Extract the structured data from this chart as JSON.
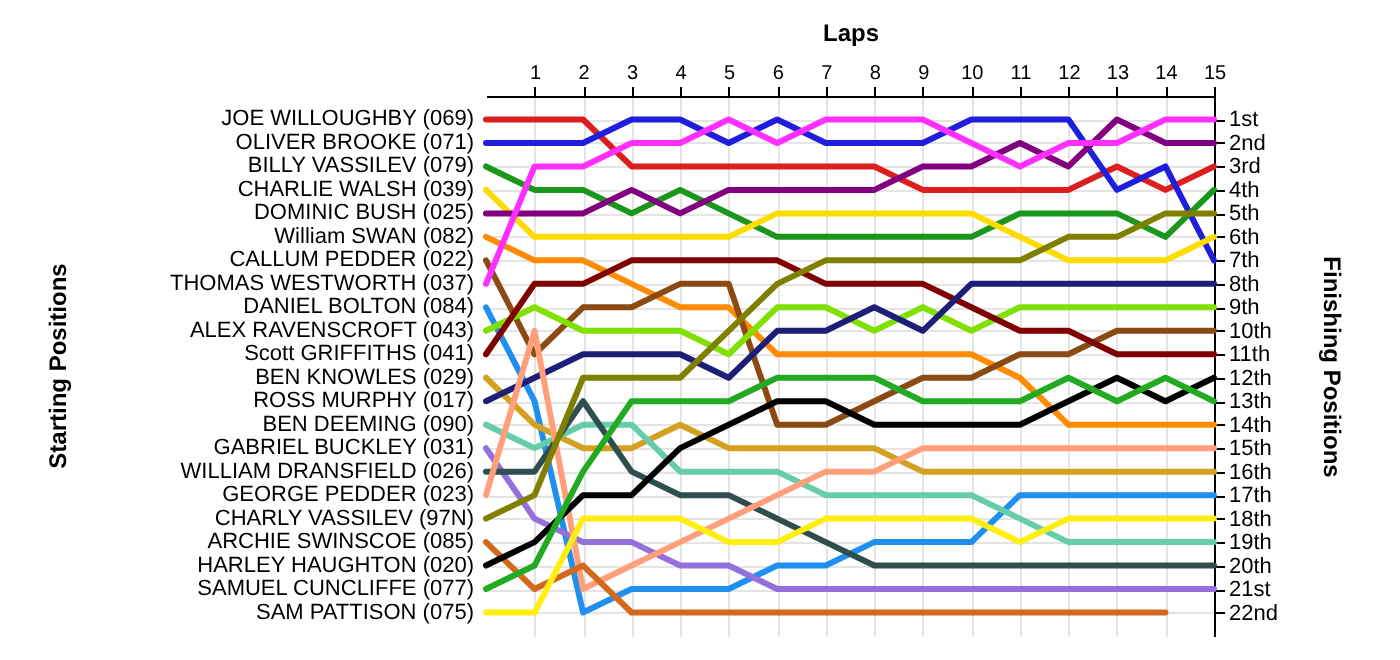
{
  "chart_data": {
    "type": "line",
    "xlabel": "Laps",
    "ylabel": "Finishing Positions",
    "annotations": [
      "Starting Positions"
    ],
    "x": [
      0,
      1,
      2,
      3,
      4,
      5,
      6,
      7,
      8,
      9,
      10,
      11,
      12,
      13,
      14,
      15
    ],
    "xlim": [
      0,
      15
    ],
    "xticks": [
      1,
      2,
      3,
      4,
      5,
      6,
      7,
      8,
      9,
      10,
      11,
      12,
      13,
      14,
      15
    ],
    "ylim": [
      23,
      0
    ],
    "yticks": [
      {
        "value": 1,
        "label": "1st"
      },
      {
        "value": 2,
        "label": "2nd"
      },
      {
        "value": 3,
        "label": "3rd"
      },
      {
        "value": 4,
        "label": "4th"
      },
      {
        "value": 5,
        "label": "5th"
      },
      {
        "value": 6,
        "label": "6th"
      },
      {
        "value": 7,
        "label": "7th"
      },
      {
        "value": 8,
        "label": "8th"
      },
      {
        "value": 9,
        "label": "9th"
      },
      {
        "value": 10,
        "label": "10th"
      },
      {
        "value": 11,
        "label": "11th"
      },
      {
        "value": 12,
        "label": "12th"
      },
      {
        "value": 13,
        "label": "13th"
      },
      {
        "value": 14,
        "label": "14th"
      },
      {
        "value": 15,
        "label": "15th"
      },
      {
        "value": 16,
        "label": "16th"
      },
      {
        "value": 17,
        "label": "17th"
      },
      {
        "value": 18,
        "label": "18th"
      },
      {
        "value": 19,
        "label": "19th"
      },
      {
        "value": 20,
        "label": "20th"
      },
      {
        "value": 21,
        "label": "21st"
      },
      {
        "value": 22,
        "label": "22nd"
      }
    ],
    "grid": true,
    "marker": "none",
    "line_style": "solid",
    "series": [
      {
        "name": "JOE WILLOUGHBY (069)",
        "color": "#dc1e1e",
        "values": [
          1,
          1,
          1,
          3,
          3,
          3,
          3,
          3,
          3,
          4,
          4,
          4,
          4,
          3,
          4,
          3
        ]
      },
      {
        "name": "OLIVER BROOKE (071)",
        "color": "#1e1edc",
        "values": [
          2,
          2,
          2,
          1,
          1,
          2,
          1,
          2,
          2,
          2,
          1,
          1,
          1,
          4,
          3,
          7
        ]
      },
      {
        "name": "BILLY VASSILEV (079)",
        "color": "#1a961a",
        "values": [
          3,
          4,
          4,
          5,
          4,
          5,
          6,
          6,
          6,
          6,
          6,
          5,
          5,
          5,
          6,
          4
        ]
      },
      {
        "name": "CHARLIE WALSH (039)",
        "color": "#ffdc00",
        "values": [
          4,
          6,
          6,
          6,
          6,
          6,
          5,
          5,
          5,
          5,
          5,
          6,
          7,
          7,
          7,
          6
        ]
      },
      {
        "name": "DOMINIC BUSH (025)",
        "color": "#800080",
        "values": [
          5,
          5,
          5,
          4,
          5,
          4,
          4,
          4,
          4,
          3,
          3,
          2,
          3,
          1,
          2,
          2
        ]
      },
      {
        "name": "William SWAN (082)",
        "color": "#ff8c00",
        "values": [
          6,
          7,
          7,
          8,
          9,
          9,
          11,
          11,
          11,
          11,
          11,
          12,
          14,
          14,
          14,
          14
        ]
      },
      {
        "name": "CALLUM PEDDER (022)",
        "color": "#8b4a14",
        "values": [
          7,
          11,
          9,
          9,
          8,
          8,
          14,
          14,
          13,
          12,
          12,
          11,
          11,
          10,
          10,
          10
        ]
      },
      {
        "name": "THOMAS WESTWORTH (037)",
        "color": "#ff30ff",
        "values": [
          8,
          3,
          3,
          2,
          2,
          1,
          2,
          1,
          1,
          1,
          2,
          3,
          2,
          2,
          1,
          1
        ]
      },
      {
        "name": "DANIEL BOLTON (084)",
        "color": "#2090f0",
        "values": [
          9,
          13,
          22,
          21,
          21,
          21,
          20,
          20,
          19,
          19,
          19,
          17,
          17,
          17,
          17,
          17
        ]
      },
      {
        "name": "ALEX RAVENSCROFT (043)",
        "color": "#80e000",
        "values": [
          10,
          9,
          10,
          10,
          10,
          11,
          9,
          9,
          10,
          9,
          10,
          9,
          9,
          9,
          9,
          9
        ]
      },
      {
        "name": "Scott GRIFFITHS (041)",
        "color": "#800000",
        "values": [
          11,
          8,
          8,
          7,
          7,
          7,
          7,
          8,
          8,
          8,
          9,
          10,
          10,
          11,
          11,
          11
        ]
      },
      {
        "name": "BEN KNOWLES (029)",
        "color": "#d4a020",
        "values": [
          12,
          14,
          15,
          15,
          14,
          15,
          15,
          15,
          15,
          16,
          16,
          16,
          16,
          16,
          16,
          16
        ]
      },
      {
        "name": "ROSS MURPHY (017)",
        "color": "#1e1e78",
        "values": [
          13,
          12,
          11,
          11,
          11,
          12,
          10,
          10,
          9,
          10,
          8,
          8,
          8,
          8,
          8,
          8
        ]
      },
      {
        "name": "BEN DEEMING (090)",
        "color": "#66cdaa",
        "values": [
          14,
          15,
          14,
          14,
          16,
          16,
          16,
          17,
          17,
          17,
          17,
          18,
          19,
          19,
          19,
          19
        ]
      },
      {
        "name": "GABRIEL BUCKLEY (031)",
        "color": "#9370db",
        "values": [
          15,
          18,
          19,
          19,
          20,
          20,
          21,
          21,
          21,
          21,
          21,
          21,
          21,
          21,
          21,
          21
        ]
      },
      {
        "name": "WILLIAM DRANSFIELD (026)",
        "color": "#2f4f4f",
        "values": [
          16,
          16,
          13,
          16,
          17,
          17,
          18,
          19,
          20,
          20,
          20,
          20,
          20,
          20,
          20,
          20
        ]
      },
      {
        "name": "GEORGE PEDDER (023)",
        "color": "#ffa07a",
        "values": [
          17,
          10,
          21,
          20,
          19,
          18,
          17,
          16,
          16,
          15,
          15,
          15,
          15,
          15,
          15,
          15
        ]
      },
      {
        "name": "CHARLY VASSILEV (97N)",
        "color": "#808000",
        "values": [
          18,
          17,
          12,
          12,
          12,
          10,
          8,
          7,
          7,
          7,
          7,
          7,
          6,
          6,
          5,
          5
        ]
      },
      {
        "name": "ARCHIE SWINSCOE (085)",
        "color": "#d2691e",
        "values": [
          19,
          21,
          20,
          22,
          22,
          22,
          22,
          22,
          22,
          22,
          22,
          22,
          22,
          22,
          22,
          null
        ]
      },
      {
        "name": "HARLEY HAUGHTON (020)",
        "color": "#000000",
        "values": [
          20,
          19,
          17,
          17,
          15,
          14,
          13,
          13,
          14,
          14,
          14,
          14,
          13,
          12,
          13,
          12
        ]
      },
      {
        "name": "SAMUEL CUNCLIFFE (077)",
        "color": "#22aa22",
        "values": [
          21,
          20,
          16,
          13,
          13,
          13,
          12,
          12,
          12,
          13,
          13,
          13,
          12,
          13,
          12,
          13
        ]
      },
      {
        "name": "SAM PATTISON (075)",
        "color": "#ffee10",
        "values": [
          22,
          22,
          18,
          18,
          18,
          19,
          19,
          18,
          18,
          18,
          18,
          19,
          18,
          18,
          18,
          18
        ]
      }
    ]
  }
}
